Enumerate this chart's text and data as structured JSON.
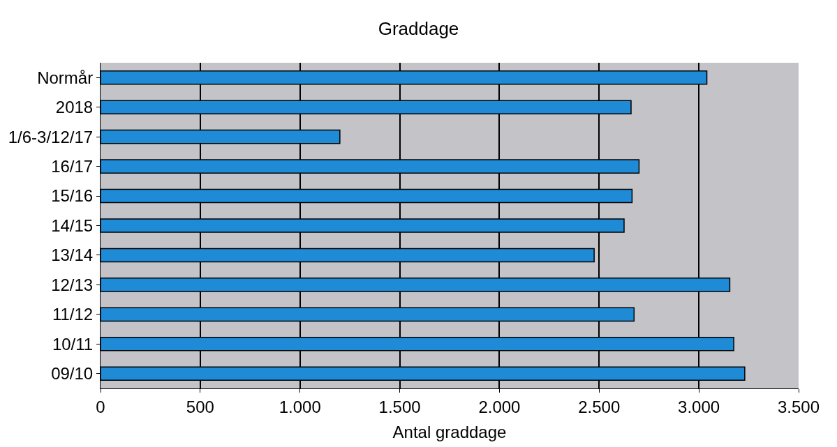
{
  "chart_data": {
    "type": "bar",
    "orientation": "horizontal",
    "title": "Graddage",
    "xlabel": "Antal graddage",
    "categories": [
      "Normår",
      "2018",
      "1/6-3/12/17",
      "16/17",
      "15/16",
      "14/15",
      "13/14",
      "12/13",
      "11/12",
      "10/11",
      "09/10"
    ],
    "values": [
      3040,
      2660,
      1200,
      2700,
      2665,
      2625,
      2475,
      3155,
      2675,
      3175,
      3230
    ],
    "color": "#1f8ad6",
    "xlim": [
      0,
      3500
    ],
    "xticks": [
      0,
      500,
      {
        "value": 1000,
        "label": "1.000"
      },
      {
        "value": 1500,
        "label": "1.500"
      },
      {
        "value": 2000,
        "label": "2.000"
      },
      {
        "value": 2500,
        "label": "2.500"
      },
      {
        "value": 3000,
        "label": "3.000"
      },
      {
        "value": 3500,
        "label": "3.500"
      }
    ],
    "grid": "x"
  }
}
